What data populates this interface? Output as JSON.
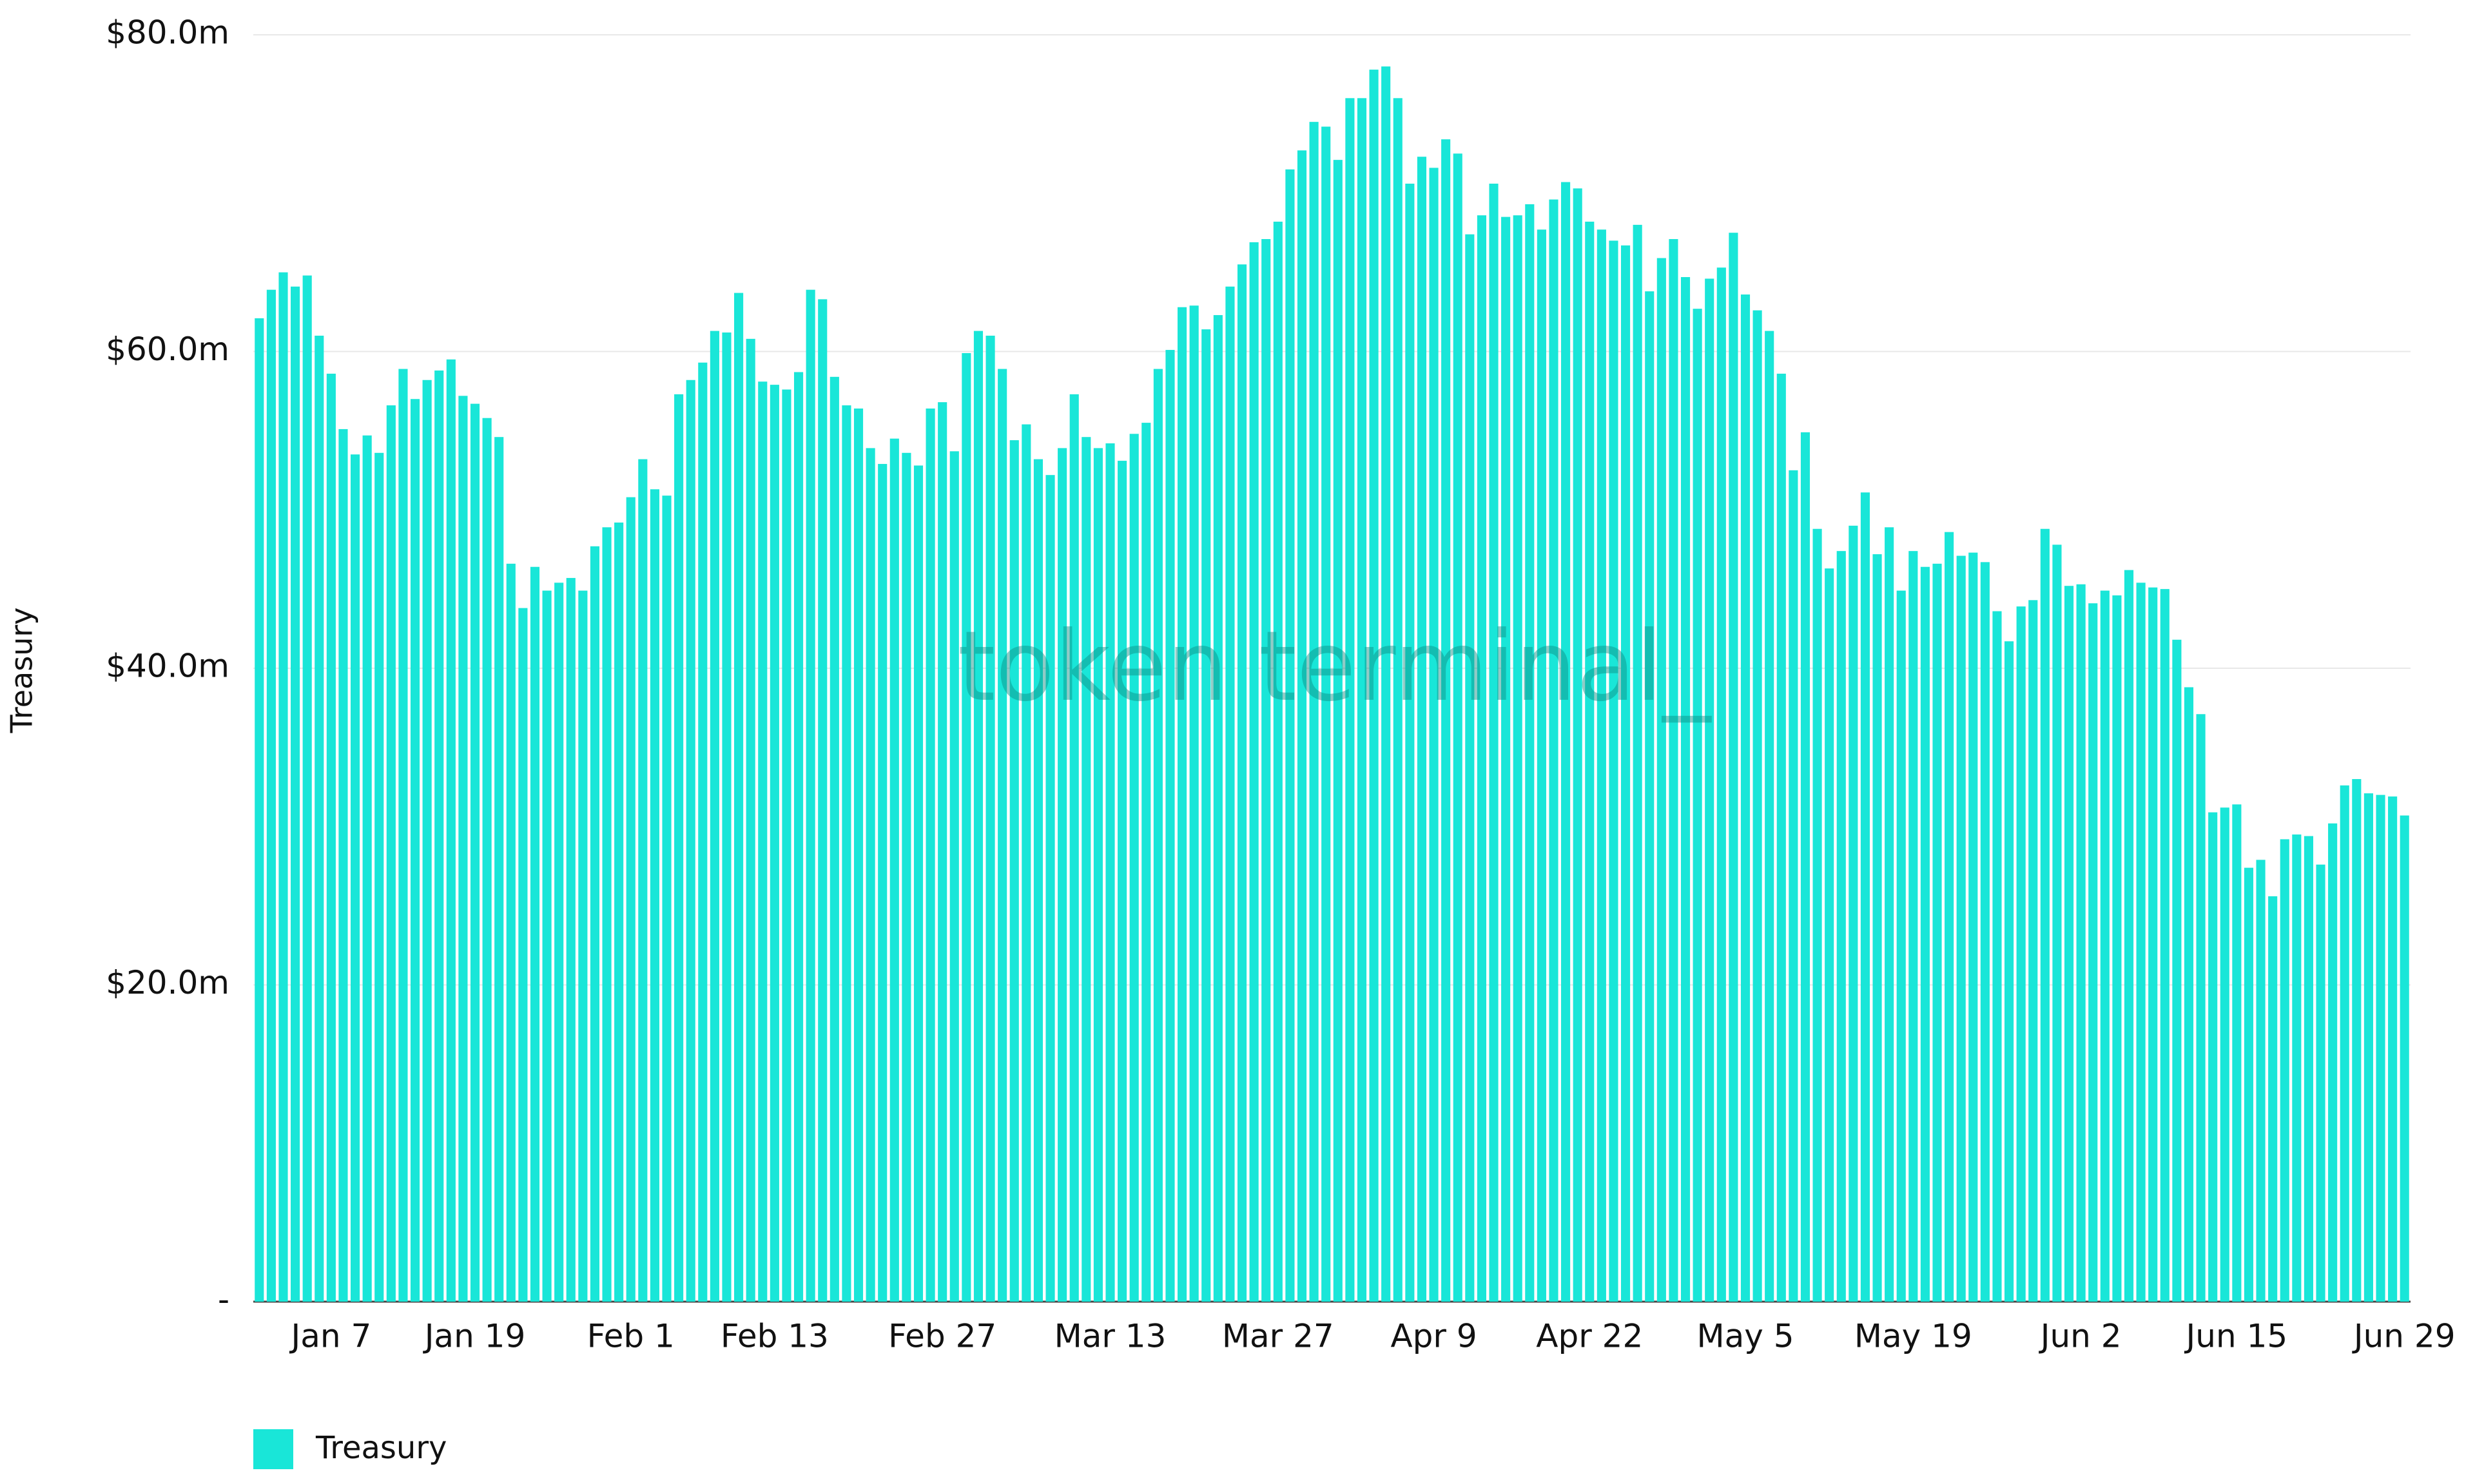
{
  "chart_data": {
    "type": "bar",
    "y_label": "Treasury",
    "watermark": "token terminal_",
    "categories": [
      null,
      null,
      null,
      null,
      null,
      null,
      "Jan 7",
      null,
      null,
      null,
      null,
      null,
      null,
      null,
      null,
      null,
      null,
      null,
      "Jan 19",
      null,
      null,
      null,
      null,
      null,
      null,
      null,
      null,
      null,
      null,
      null,
      null,
      "Feb 1",
      null,
      null,
      null,
      null,
      null,
      null,
      null,
      null,
      null,
      null,
      null,
      "Feb 13",
      null,
      null,
      null,
      null,
      null,
      null,
      null,
      null,
      null,
      null,
      null,
      null,
      null,
      "Feb 27",
      null,
      null,
      null,
      null,
      null,
      null,
      null,
      null,
      null,
      null,
      null,
      null,
      null,
      "Mar 13",
      null,
      null,
      null,
      null,
      null,
      null,
      null,
      null,
      null,
      null,
      null,
      null,
      null,
      "Mar 27",
      null,
      null,
      null,
      null,
      null,
      null,
      null,
      null,
      null,
      null,
      null,
      null,
      "Apr 9",
      null,
      null,
      null,
      null,
      null,
      null,
      null,
      null,
      null,
      null,
      null,
      null,
      "Apr 22",
      null,
      null,
      null,
      null,
      null,
      null,
      null,
      null,
      null,
      null,
      null,
      null,
      "May 5",
      null,
      null,
      null,
      null,
      null,
      null,
      null,
      null,
      null,
      null,
      null,
      null,
      null,
      "May 19",
      null,
      null,
      null,
      null,
      null,
      null,
      null,
      null,
      null,
      null,
      null,
      null,
      null,
      "Jun 2",
      null,
      null,
      null,
      null,
      null,
      null,
      null,
      null,
      null,
      null,
      null,
      null,
      "Jun 15",
      null,
      null,
      null,
      null,
      null,
      null,
      null,
      null,
      null,
      null,
      null,
      null,
      null,
      "Jun 29"
    ],
    "series": [
      {
        "name": "Treasury",
        "color": "#19e6d8",
        "values": [
          62.1,
          63.9,
          65.0,
          64.1,
          64.8,
          61.0,
          58.6,
          55.1,
          53.5,
          54.7,
          53.6,
          56.6,
          58.9,
          57.0,
          58.2,
          58.8,
          59.5,
          57.2,
          56.7,
          55.8,
          54.6,
          46.6,
          43.8,
          46.4,
          44.9,
          45.4,
          45.7,
          44.9,
          47.7,
          48.9,
          49.2,
          50.8,
          53.2,
          51.3,
          50.9,
          57.3,
          58.2,
          59.3,
          61.3,
          61.2,
          63.7,
          60.8,
          58.1,
          57.9,
          57.6,
          58.7,
          63.9,
          63.3,
          58.4,
          56.6,
          56.4,
          53.9,
          52.9,
          54.5,
          53.6,
          52.8,
          56.4,
          56.8,
          53.7,
          59.9,
          61.3,
          61.0,
          58.9,
          54.4,
          55.4,
          53.2,
          52.2,
          53.9,
          57.3,
          54.6,
          53.9,
          54.2,
          53.1,
          54.8,
          55.5,
          58.9,
          60.1,
          62.8,
          62.9,
          61.4,
          62.3,
          64.1,
          65.5,
          66.9,
          67.1,
          68.2,
          71.5,
          72.7,
          74.5,
          74.2,
          72.1,
          76.0,
          76.0,
          77.8,
          78.0,
          76.0,
          70.6,
          72.3,
          71.6,
          73.4,
          72.5,
          67.4,
          68.6,
          70.6,
          68.5,
          68.6,
          69.3,
          67.7,
          69.6,
          70.7,
          70.3,
          68.2,
          67.7,
          67.0,
          66.7,
          68.0,
          63.8,
          65.9,
          67.1,
          64.7,
          62.7,
          64.6,
          65.3,
          67.5,
          63.6,
          62.6,
          61.3,
          58.6,
          52.5,
          54.9,
          48.8,
          46.3,
          47.4,
          49.0,
          51.1,
          47.2,
          48.9,
          44.9,
          47.4,
          46.4,
          46.6,
          48.6,
          47.1,
          47.3,
          46.7,
          43.6,
          41.7,
          43.9,
          44.3,
          48.8,
          47.8,
          45.2,
          45.3,
          44.1,
          44.9,
          44.6,
          46.2,
          45.4,
          45.1,
          45.0,
          41.8,
          38.8,
          37.1,
          30.9,
          31.2,
          31.4,
          27.4,
          27.9,
          25.6,
          29.2,
          29.5,
          29.4,
          27.6,
          30.2,
          32.6,
          33.0,
          32.1,
          32.0,
          31.9,
          30.7
        ]
      }
    ],
    "ylim": [
      0,
      80
    ],
    "yticks": [
      {
        "value": 0,
        "label": "-"
      },
      {
        "value": 20,
        "label": "$20.0m"
      },
      {
        "value": 40,
        "label": "$40.0m"
      },
      {
        "value": 60,
        "label": "$60.0m"
      },
      {
        "value": 80,
        "label": "$80.0m"
      }
    ],
    "grid": true
  }
}
